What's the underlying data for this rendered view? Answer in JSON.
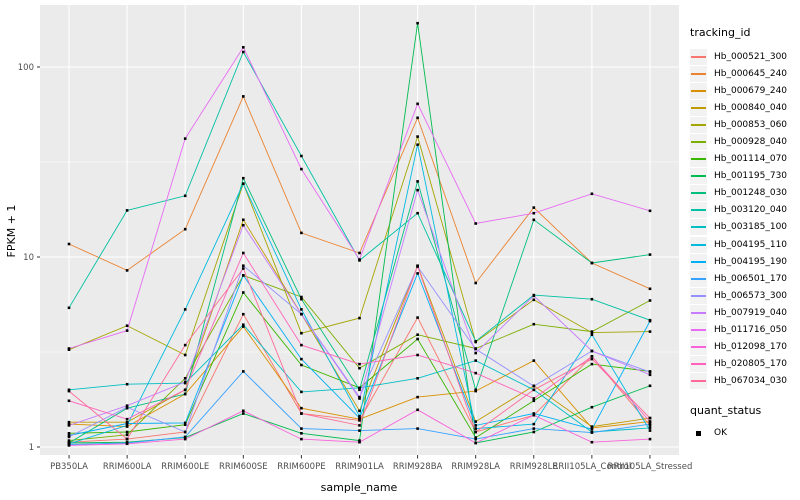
{
  "axes": {
    "x_title": "sample_name",
    "y_title": "FPKM + 1",
    "y_tick_labels": [
      "1",
      "10",
      "100"
    ],
    "tick_label_color": "#4D4D4D",
    "axis_title_color": "#000000"
  },
  "panel": {
    "bg_color": "#EBEBEB",
    "grid_color": "#FFFFFF",
    "point_color": "#000000"
  },
  "legend": {
    "title": "tracking_id",
    "key_bg": "#F2F2F2",
    "quant_title": "quant_status",
    "quant_item": "OK"
  },
  "chart_data": {
    "type": "line",
    "title": "",
    "xlabel": "sample_name",
    "ylabel": "FPKM + 1",
    "yscale": "log10",
    "yticks": [
      1,
      10,
      100
    ],
    "ylim": [
      0.92,
      215
    ],
    "grid": true,
    "legend_position": "right",
    "point_shape": "small black square (quant_status OK)",
    "categories": [
      "PB350LA",
      "RRIM600LA",
      "RRIM600LE",
      "RRIM600SE",
      "RRIM600PE",
      "RRIM901LA",
      "RRIM928BA",
      "RRIM928LA",
      "RRIM928LE",
      "RRII105LA_Control",
      "RRII105LA_Stressed"
    ],
    "series": [
      {
        "name": "Hb_000521_300",
        "color": "#F8766D",
        "values": [
          1.06,
          1.1,
          1.2,
          5.0,
          1.5,
          1.38,
          4.8,
          1.2,
          1.47,
          3.0,
          1.3
        ]
      },
      {
        "name": "Hb_000645_240",
        "color": "#EA8331",
        "values": [
          11.7,
          8.5,
          14,
          70,
          13.4,
          10.5,
          54,
          7.3,
          18.2,
          9.3,
          6.8
        ]
      },
      {
        "name": "Hb_000679_240",
        "color": "#D89000",
        "values": [
          1.32,
          1.28,
          1.9,
          4.3,
          1.6,
          1.4,
          1.83,
          1.97,
          2.85,
          1.26,
          1.36
        ]
      },
      {
        "name": "Hb_000840_040",
        "color": "#C09B00",
        "values": [
          1.35,
          1.35,
          2.0,
          15.7,
          5.0,
          1.55,
          9.0,
          1.36,
          2.1,
          1.28,
          1.42
        ]
      },
      {
        "name": "Hb_000853_060",
        "color": "#A3A500",
        "values": [
          3.25,
          4.35,
          3.05,
          24.3,
          3.97,
          4.77,
          43,
          3.57,
          5.95,
          4.0,
          4.05
        ]
      },
      {
        "name": "Hb_000928_040",
        "color": "#7CAE00",
        "values": [
          1.08,
          1.16,
          2.3,
          8.0,
          6.16,
          2.6,
          3.9,
          3.3,
          4.43,
          4.05,
          5.9
        ]
      },
      {
        "name": "Hb_001114_070",
        "color": "#39B600",
        "values": [
          1.18,
          1.2,
          1.31,
          6.5,
          2.7,
          2.05,
          3.7,
          1.12,
          1.75,
          2.73,
          2.5
        ]
      },
      {
        "name": "Hb_001195_730",
        "color": "#00BB4E",
        "values": [
          1.05,
          1.06,
          1.12,
          1.5,
          1.18,
          1.08,
          170,
          1.05,
          1.2,
          1.62,
          2.1
        ]
      },
      {
        "name": "Hb_001248_030",
        "color": "#00BF7D",
        "values": [
          1.05,
          1.6,
          1.9,
          26,
          6.0,
          2.0,
          25,
          2.0,
          15.7,
          9.3,
          10.3
        ]
      },
      {
        "name": "Hb_003120_040",
        "color": "#00C1A3",
        "values": [
          5.4,
          17.6,
          21,
          120,
          34,
          9.6,
          17,
          3.6,
          6.3,
          6.0,
          4.65
        ]
      },
      {
        "name": "Hb_003185_100",
        "color": "#00BFC4",
        "values": [
          2.0,
          2.14,
          2.17,
          4.4,
          1.95,
          2.05,
          2.3,
          2.85,
          2.0,
          1.2,
          1.26
        ]
      },
      {
        "name": "Hb_004195_110",
        "color": "#00BAE0",
        "values": [
          1.04,
          1.3,
          5.3,
          24.3,
          5.3,
          1.45,
          39,
          1.25,
          1.32,
          3.9,
          1.22
        ]
      },
      {
        "name": "Hb_004195_190",
        "color": "#00B0F6",
        "values": [
          1.15,
          1.33,
          1.34,
          8.0,
          2.9,
          1.42,
          8.2,
          1.3,
          1.5,
          1.24,
          4.6
        ]
      },
      {
        "name": "Hb_006501_170",
        "color": "#35A2FF",
        "values": [
          1.03,
          1.05,
          1.13,
          2.5,
          1.25,
          1.22,
          1.25,
          1.1,
          1.25,
          1.19,
          1.32
        ]
      },
      {
        "name": "Hb_006573_300",
        "color": "#9590FF",
        "values": [
          1.13,
          1.62,
          1.2,
          9.0,
          5.0,
          1.83,
          8.9,
          3.28,
          2.09,
          3.2,
          2.48
        ]
      },
      {
        "name": "Hb_007919_040",
        "color": "#C77CFF",
        "values": [
          1.3,
          1.65,
          2.2,
          14.7,
          5.0,
          1.8,
          22.5,
          3.12,
          6.25,
          3.2,
          2.4
        ]
      },
      {
        "name": "Hb_011716_050",
        "color": "#E76BF3",
        "values": [
          3.3,
          4.1,
          42,
          127,
          29,
          9.7,
          64,
          15,
          17,
          21.5,
          17.5
        ]
      },
      {
        "name": "Hb_012098_170",
        "color": "#FA62DB",
        "values": [
          1.02,
          1.04,
          1.1,
          1.55,
          1.1,
          1.06,
          1.57,
          1.05,
          1.47,
          1.06,
          1.1
        ]
      },
      {
        "name": "Hb_020805_170",
        "color": "#FF62BC",
        "values": [
          1.75,
          1.4,
          2.0,
          10.5,
          3.44,
          2.73,
          3.05,
          2.45,
          1.8,
          3.0,
          1.36
        ]
      },
      {
        "name": "Hb_067034_030",
        "color": "#FF6A98",
        "values": [
          1.97,
          1.1,
          3.44,
          8.7,
          1.5,
          1.3,
          8.95,
          1.2,
          2.0,
          2.9,
          1.42
        ]
      }
    ]
  }
}
